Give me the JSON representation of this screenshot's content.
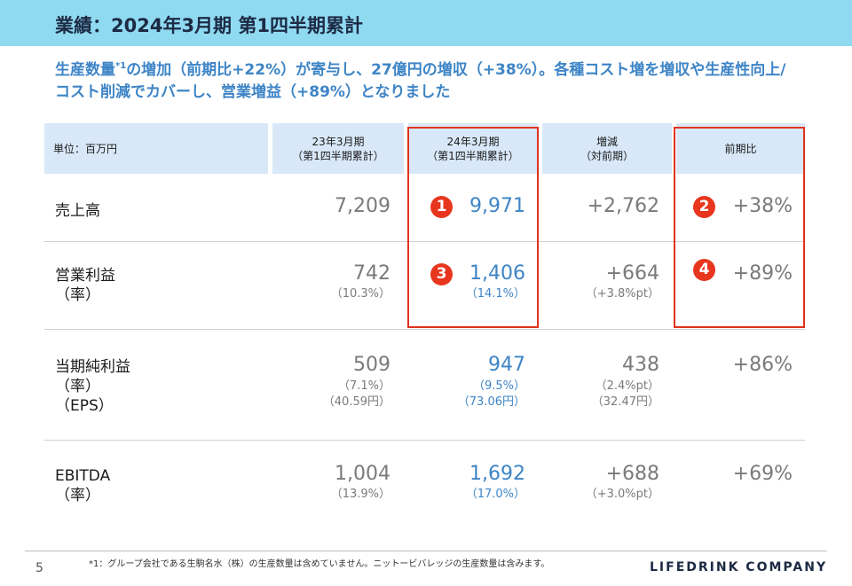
{
  "header": {
    "title": "業績：2024年3月期 第1四半期累計"
  },
  "headline": {
    "part1": "生産数量",
    "mark": "*1",
    "part2": "の増加（前期比+22%）が寄与し、27億円の増収（+38%）。各種コスト増を増収や生産性向上/コスト削減でカバーし、営業増益（+89%）となりました"
  },
  "table": {
    "unit_label": "単位：百万円",
    "columns": [
      {
        "line1": "23年3月期",
        "line2": "（第1四半期累計）"
      },
      {
        "line1": "24年3月期",
        "line2": "（第1四半期累計）"
      },
      {
        "line1": "増減",
        "line2": "（対前期）"
      },
      {
        "line1": "前期比",
        "line2": ""
      }
    ],
    "rows": [
      {
        "labels": [
          "売上高"
        ],
        "prev": "7,209",
        "curr": "9,971",
        "diff": "+2,762",
        "ratio": "+38%",
        "prev_sub": [],
        "curr_sub": [],
        "diff_sub": []
      },
      {
        "labels": [
          "営業利益",
          "（率）"
        ],
        "prev": "742",
        "curr": "1,406",
        "diff": "+664",
        "ratio": "+89%",
        "prev_sub": [
          "（10.3%）"
        ],
        "curr_sub": [
          "（14.1%）"
        ],
        "diff_sub": [
          "（+3.8%pt）"
        ]
      },
      {
        "labels": [
          "当期純利益",
          "（率）",
          "（EPS）"
        ],
        "prev": "509",
        "curr": "947",
        "diff": "438",
        "ratio": "+86%",
        "prev_sub": [
          "（7.1%）",
          "（40.59円）"
        ],
        "curr_sub": [
          "（9.5%）",
          "（73.06円）"
        ],
        "diff_sub": [
          "（2.4%pt）",
          "（32.47円）"
        ]
      },
      {
        "labels": [
          "EBITDA",
          "（率）"
        ],
        "prev": "1,004",
        "curr": "1,692",
        "diff": "+688",
        "ratio": "+69%",
        "prev_sub": [
          "（13.9%）"
        ],
        "curr_sub": [
          "（17.0%）"
        ],
        "diff_sub": [
          "（+3.0%pt）"
        ]
      }
    ]
  },
  "markers": [
    "1",
    "2",
    "3",
    "4"
  ],
  "footer": {
    "page_number": "5",
    "footnote": "*1：グループ会社である生駒名水（株）の生産数量は含めていません。ニットービバレッジの生産数量は含みます。",
    "logo": "LIFEDRINK COMPANY"
  },
  "colors": {
    "title_bar": "#8fd9f1",
    "header_cell": "#d8e8f8",
    "accent_blue": "#3e85c6",
    "highlight_red": "#e0321e"
  }
}
